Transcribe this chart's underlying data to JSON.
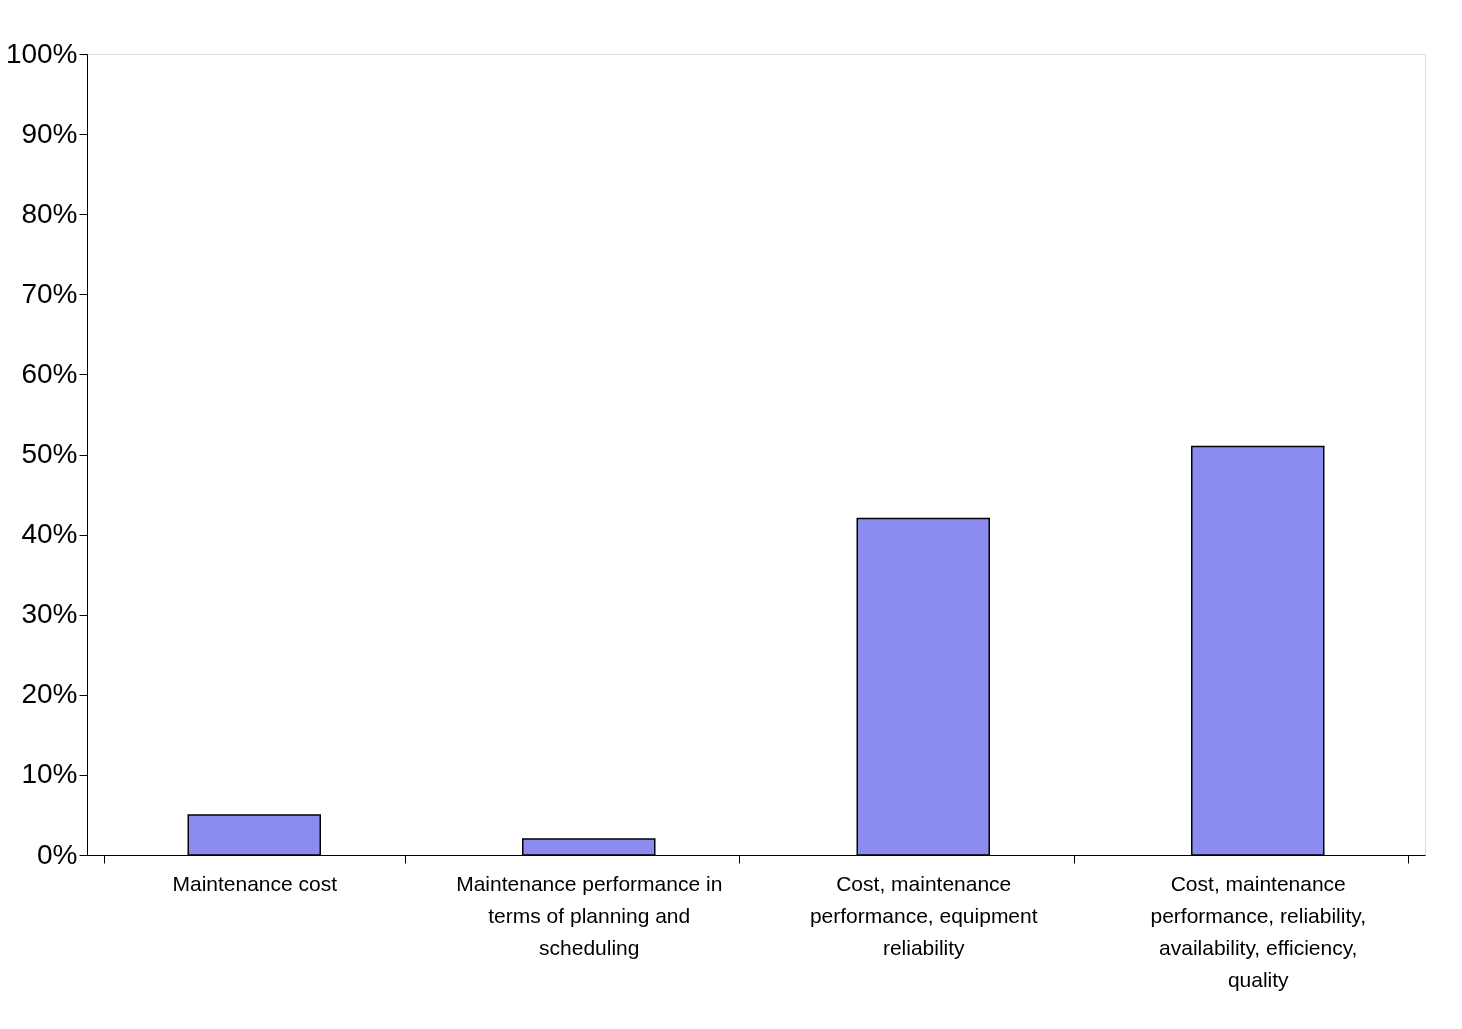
{
  "chart_data": {
    "type": "bar",
    "categories": [
      "Maintenance cost",
      "Maintenance performance in terms of planning and scheduling",
      "Cost, maintenance performance, equipment reliability",
      "Cost, maintenance performance, reliability, availability, efficiency, quality"
    ],
    "values": [
      5,
      2,
      42,
      51
    ],
    "color": "#8c8cf0",
    "ylim": [
      0,
      100
    ],
    "yticks": [
      {
        "value": 0,
        "label": "0%"
      },
      {
        "value": 10,
        "label": "10%"
      },
      {
        "value": 20,
        "label": "20%"
      },
      {
        "value": 30,
        "label": "30%"
      },
      {
        "value": 40,
        "label": "40%"
      },
      {
        "value": 50,
        "label": "50%"
      },
      {
        "value": 60,
        "label": "60%"
      },
      {
        "value": 70,
        "label": "70%"
      },
      {
        "value": 80,
        "label": "80%"
      },
      {
        "value": 90,
        "label": "90%"
      },
      {
        "value": 100,
        "label": "100%"
      }
    ],
    "grid": false
  }
}
